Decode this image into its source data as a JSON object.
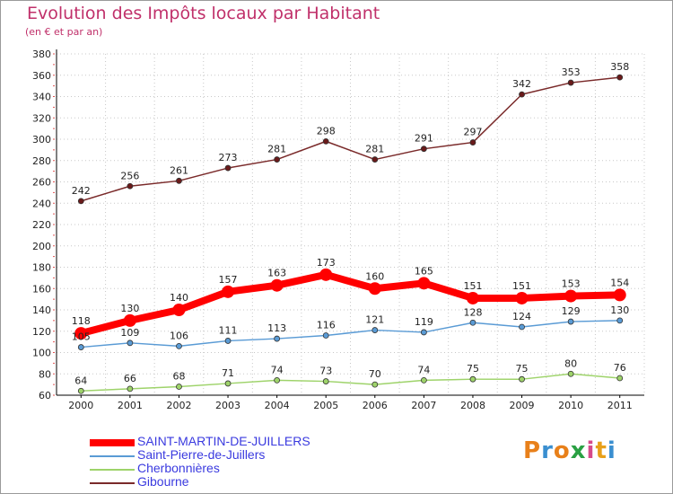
{
  "title": "Evolution des Impôts locaux par Habitant",
  "subtitle": "(en € et par an)",
  "logo": "Proxiti",
  "chart_data": {
    "type": "line",
    "x": [
      "2000",
      "2001",
      "2002",
      "2003",
      "2004",
      "2005",
      "2006",
      "2007",
      "2008",
      "2009",
      "2010",
      "2011"
    ],
    "ylim": [
      60,
      380
    ],
    "yticks": [
      60,
      80,
      100,
      120,
      140,
      160,
      180,
      200,
      220,
      240,
      260,
      280,
      300,
      320,
      340,
      360,
      380
    ],
    "grid": true,
    "legend_position": "bottom-left",
    "series": [
      {
        "name": "SAINT-MARTIN-DE-JUILLERS",
        "color": "#ff0000",
        "values": [
          118,
          130,
          140,
          157,
          163,
          173,
          160,
          165,
          151,
          151,
          153,
          154
        ]
      },
      {
        "name": "Saint-Pierre-de-Juillers",
        "color": "#5a9bd5",
        "values": [
          105,
          109,
          106,
          111,
          113,
          116,
          121,
          119,
          128,
          124,
          129,
          130
        ]
      },
      {
        "name": "Cherbonnières",
        "color": "#9ed36a",
        "values": [
          64,
          66,
          68,
          71,
          74,
          73,
          70,
          74,
          75,
          75,
          80,
          76
        ]
      },
      {
        "name": "Gibourne",
        "color": "#7a2a2a",
        "values": [
          242,
          256,
          261,
          273,
          281,
          298,
          281,
          291,
          297,
          342,
          353,
          358
        ]
      }
    ]
  }
}
